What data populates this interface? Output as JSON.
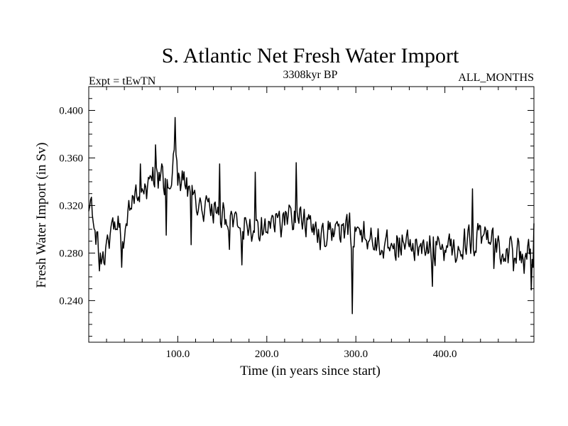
{
  "chart_data": {
    "type": "line",
    "title": "S. Atlantic Net Fresh Water Import",
    "subtitle_left": "Expt = tEwTN",
    "subtitle_center": "3308kyr BP",
    "subtitle_right": "ALL_MONTHS",
    "xlabel": "Time (in years since start)",
    "ylabel": "Fresh Water Import (in Sv)",
    "xlim": [
      0,
      500
    ],
    "ylim": [
      0.205,
      0.42
    ],
    "x_ticks": [
      100,
      200,
      300,
      400
    ],
    "x_tick_labels": [
      "100.0",
      "200.0",
      "300.0",
      "400.0"
    ],
    "x_minor_step": 20,
    "y_ticks": [
      0.24,
      0.28,
      0.32,
      0.36,
      0.4
    ],
    "y_tick_labels": [
      "0.240",
      "0.280",
      "0.320",
      "0.360",
      "0.400"
    ],
    "y_minor_step": 0.01,
    "grid": false,
    "series": [
      {
        "name": "Fresh Water Import",
        "x_start": 0,
        "x_step": 1,
        "anchors": [
          [
            0,
            0.307
          ],
          [
            5,
            0.318
          ],
          [
            10,
            0.285
          ],
          [
            15,
            0.275
          ],
          [
            20,
            0.282
          ],
          [
            25,
            0.3
          ],
          [
            30,
            0.303
          ],
          [
            35,
            0.3
          ],
          [
            40,
            0.294
          ],
          [
            45,
            0.31
          ],
          [
            50,
            0.32
          ],
          [
            55,
            0.325
          ],
          [
            60,
            0.33
          ],
          [
            65,
            0.335
          ],
          [
            70,
            0.34
          ],
          [
            75,
            0.343
          ],
          [
            80,
            0.34
          ],
          [
            85,
            0.338
          ],
          [
            90,
            0.345
          ],
          [
            95,
            0.355
          ],
          [
            100,
            0.345
          ],
          [
            105,
            0.34
          ],
          [
            110,
            0.337
          ],
          [
            115,
            0.33
          ],
          [
            120,
            0.325
          ],
          [
            130,
            0.318
          ],
          [
            140,
            0.315
          ],
          [
            150,
            0.312
          ],
          [
            160,
            0.31
          ],
          [
            170,
            0.305
          ],
          [
            180,
            0.303
          ],
          [
            190,
            0.302
          ],
          [
            200,
            0.302
          ],
          [
            210,
            0.306
          ],
          [
            220,
            0.308
          ],
          [
            230,
            0.313
          ],
          [
            240,
            0.308
          ],
          [
            250,
            0.302
          ],
          [
            260,
            0.298
          ],
          [
            270,
            0.298
          ],
          [
            280,
            0.297
          ],
          [
            290,
            0.298
          ],
          [
            300,
            0.298
          ],
          [
            310,
            0.296
          ],
          [
            320,
            0.29
          ],
          [
            330,
            0.288
          ],
          [
            340,
            0.29
          ],
          [
            350,
            0.286
          ],
          [
            360,
            0.286
          ],
          [
            370,
            0.283
          ],
          [
            380,
            0.284
          ],
          [
            390,
            0.284
          ],
          [
            400,
            0.285
          ],
          [
            410,
            0.284
          ],
          [
            420,
            0.288
          ],
          [
            430,
            0.292
          ],
          [
            440,
            0.292
          ],
          [
            450,
            0.288
          ],
          [
            460,
            0.287
          ],
          [
            470,
            0.282
          ],
          [
            480,
            0.28
          ],
          [
            490,
            0.276
          ],
          [
            500,
            0.275
          ]
        ],
        "noise_amplitude": 0.015,
        "seed": 3308,
        "spikes": [
          [
            3,
            0.327
          ],
          [
            12,
            0.265
          ],
          [
            37,
            0.268
          ],
          [
            58,
            0.355
          ],
          [
            75,
            0.371
          ],
          [
            87,
            0.295
          ],
          [
            97,
            0.394
          ],
          [
            115,
            0.287
          ],
          [
            147,
            0.355
          ],
          [
            158,
            0.283
          ],
          [
            172,
            0.27
          ],
          [
            187,
            0.348
          ],
          [
            233,
            0.356
          ],
          [
            296,
            0.229
          ],
          [
            386,
            0.252
          ],
          [
            431,
            0.334
          ],
          [
            455,
            0.267
          ],
          [
            477,
            0.265
          ],
          [
            497,
            0.249
          ],
          [
            500,
            0.305
          ]
        ]
      }
    ]
  }
}
